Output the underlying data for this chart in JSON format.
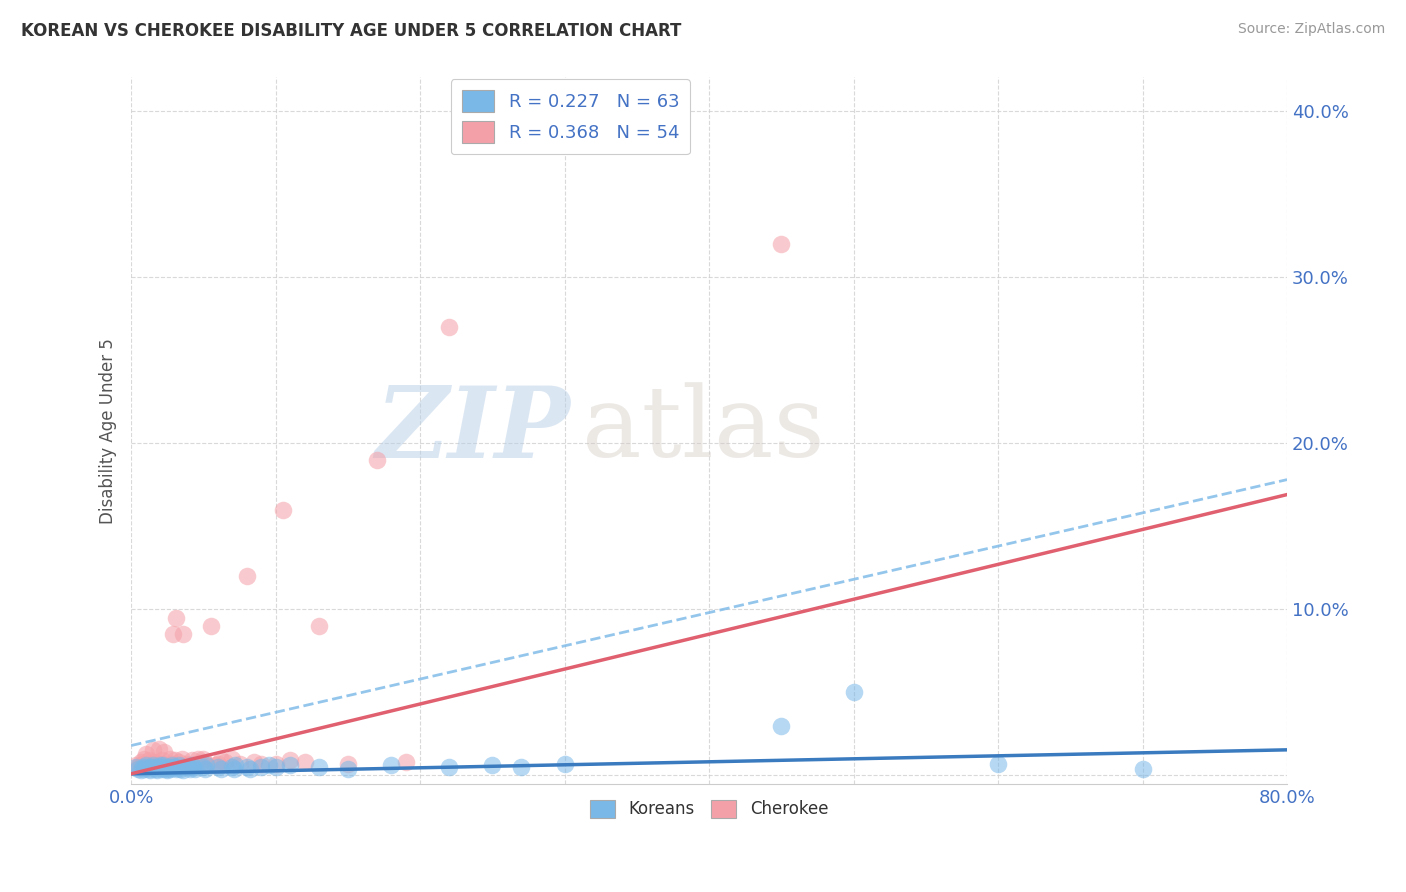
{
  "title": "KOREAN VS CHEROKEE DISABILITY AGE UNDER 5 CORRELATION CHART",
  "source": "Source: ZipAtlas.com",
  "ylabel_label": "Disability Age Under 5",
  "xlim": [
    0.0,
    0.8
  ],
  "ylim": [
    -0.005,
    0.42
  ],
  "xticks": [
    0.0,
    0.1,
    0.2,
    0.3,
    0.4,
    0.5,
    0.6,
    0.7,
    0.8
  ],
  "xtick_labels": [
    "0.0%",
    "",
    "",
    "",
    "",
    "",
    "",
    "",
    "80.0%"
  ],
  "yticks": [
    0.0,
    0.1,
    0.2,
    0.3,
    0.4
  ],
  "ytick_labels": [
    "",
    "10.0%",
    "20.0%",
    "30.0%",
    "40.0%"
  ],
  "korean_color": "#7ab8e8",
  "cherokee_color": "#f4a0a8",
  "korean_line_color": "#4472c4",
  "cherokee_line_color": "#e06080",
  "korean_R": 0.227,
  "korean_N": 63,
  "cherokee_R": 0.368,
  "cherokee_N": 54,
  "legend_label1": "Koreans",
  "legend_label2": "Cherokee",
  "watermark_zip": "ZIP",
  "watermark_atlas": "atlas",
  "background_color": "#ffffff",
  "grid_color": "#d0d0d0",
  "korean_x": [
    0.003,
    0.005,
    0.007,
    0.008,
    0.009,
    0.01,
    0.01,
    0.012,
    0.013,
    0.014,
    0.015,
    0.016,
    0.017,
    0.018,
    0.019,
    0.02,
    0.02,
    0.021,
    0.022,
    0.023,
    0.024,
    0.025,
    0.026,
    0.027,
    0.028,
    0.029,
    0.03,
    0.031,
    0.032,
    0.033,
    0.034,
    0.035,
    0.036,
    0.04,
    0.041,
    0.042,
    0.043,
    0.044,
    0.05,
    0.051,
    0.052,
    0.06,
    0.062,
    0.07,
    0.071,
    0.072,
    0.08,
    0.082,
    0.09,
    0.095,
    0.1,
    0.11,
    0.13,
    0.15,
    0.18,
    0.22,
    0.25,
    0.27,
    0.3,
    0.45,
    0.5,
    0.6,
    0.7
  ],
  "korean_y": [
    0.005,
    0.004,
    0.003,
    0.005,
    0.004,
    0.005,
    0.006,
    0.004,
    0.003,
    0.005,
    0.006,
    0.005,
    0.004,
    0.003,
    0.005,
    0.006,
    0.005,
    0.004,
    0.006,
    0.005,
    0.004,
    0.003,
    0.005,
    0.004,
    0.006,
    0.005,
    0.005,
    0.004,
    0.005,
    0.006,
    0.004,
    0.005,
    0.003,
    0.005,
    0.004,
    0.006,
    0.005,
    0.004,
    0.005,
    0.004,
    0.006,
    0.005,
    0.004,
    0.005,
    0.004,
    0.006,
    0.005,
    0.004,
    0.005,
    0.006,
    0.005,
    0.006,
    0.005,
    0.004,
    0.006,
    0.005,
    0.006,
    0.005,
    0.007,
    0.03,
    0.05,
    0.007,
    0.004
  ],
  "cherokee_x": [
    0.003,
    0.005,
    0.007,
    0.008,
    0.009,
    0.01,
    0.012,
    0.013,
    0.015,
    0.016,
    0.018,
    0.019,
    0.02,
    0.021,
    0.022,
    0.023,
    0.025,
    0.027,
    0.028,
    0.029,
    0.03,
    0.031,
    0.032,
    0.033,
    0.035,
    0.036,
    0.038,
    0.04,
    0.042,
    0.044,
    0.046,
    0.048,
    0.05,
    0.052,
    0.055,
    0.058,
    0.06,
    0.062,
    0.065,
    0.07,
    0.075,
    0.08,
    0.085,
    0.09,
    0.1,
    0.105,
    0.11,
    0.12,
    0.13,
    0.15,
    0.17,
    0.19,
    0.22,
    0.45
  ],
  "cherokee_y": [
    0.006,
    0.005,
    0.008,
    0.007,
    0.01,
    0.013,
    0.009,
    0.007,
    0.015,
    0.008,
    0.006,
    0.016,
    0.007,
    0.009,
    0.007,
    0.014,
    0.005,
    0.01,
    0.007,
    0.085,
    0.009,
    0.095,
    0.006,
    0.008,
    0.01,
    0.085,
    0.007,
    0.006,
    0.009,
    0.007,
    0.01,
    0.008,
    0.01,
    0.007,
    0.09,
    0.006,
    0.007,
    0.009,
    0.008,
    0.01,
    0.007,
    0.12,
    0.008,
    0.007,
    0.007,
    0.16,
    0.009,
    0.008,
    0.09,
    0.007,
    0.19,
    0.008,
    0.27,
    0.32
  ],
  "korean_line_slope": 0.018,
  "korean_line_intercept": 0.001,
  "cherokee_line_slope": 0.21,
  "cherokee_line_intercept": 0.001
}
